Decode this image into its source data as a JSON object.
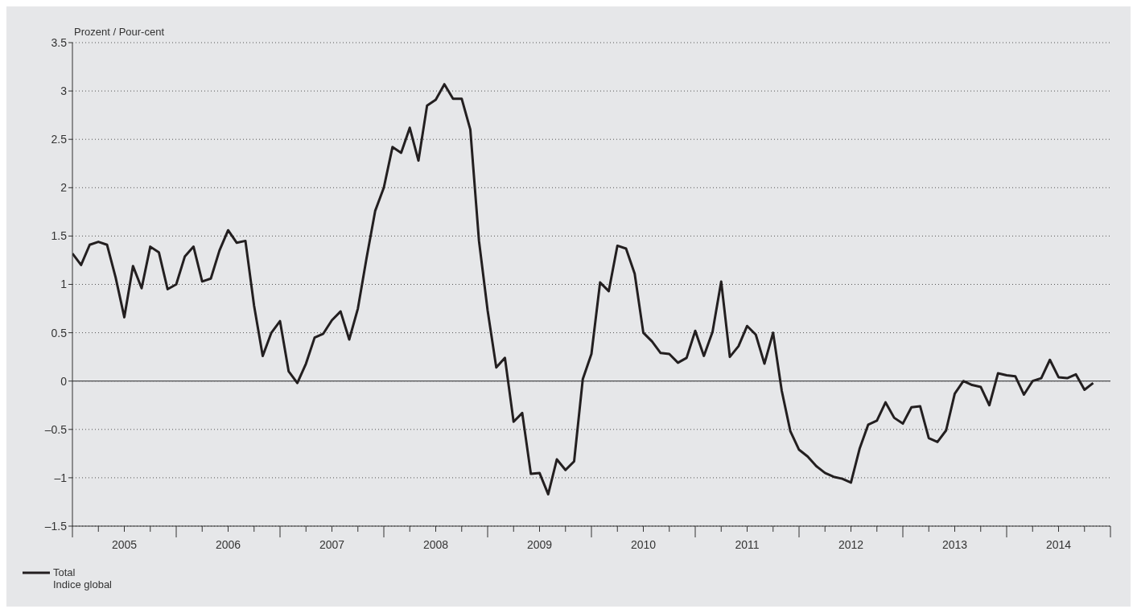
{
  "chart_data": {
    "type": "line",
    "ylabel": "Prozent / Pour-cent",
    "x": [
      "2005-01",
      "2005-02",
      "2005-03",
      "2005-04",
      "2005-05",
      "2005-06",
      "2005-07",
      "2005-08",
      "2005-09",
      "2005-10",
      "2005-11",
      "2005-12",
      "2006-01",
      "2006-02",
      "2006-03",
      "2006-04",
      "2006-05",
      "2006-06",
      "2006-07",
      "2006-08",
      "2006-09",
      "2006-10",
      "2006-11",
      "2006-12",
      "2007-01",
      "2007-02",
      "2007-03",
      "2007-04",
      "2007-05",
      "2007-06",
      "2007-07",
      "2007-08",
      "2007-09",
      "2007-10",
      "2007-11",
      "2007-12",
      "2008-01",
      "2008-02",
      "2008-03",
      "2008-04",
      "2008-05",
      "2008-06",
      "2008-07",
      "2008-08",
      "2008-09",
      "2008-10",
      "2008-11",
      "2008-12",
      "2009-01",
      "2009-02",
      "2009-03",
      "2009-04",
      "2009-05",
      "2009-06",
      "2009-07",
      "2009-08",
      "2009-09",
      "2009-10",
      "2009-11",
      "2009-12",
      "2010-01",
      "2010-02",
      "2010-03",
      "2010-04",
      "2010-05",
      "2010-06",
      "2010-07",
      "2010-08",
      "2010-09",
      "2010-10",
      "2010-11",
      "2010-12",
      "2011-01",
      "2011-02",
      "2011-03",
      "2011-04",
      "2011-05",
      "2011-06",
      "2011-07",
      "2011-08",
      "2011-09",
      "2011-10",
      "2011-11",
      "2011-12",
      "2012-01",
      "2012-02",
      "2012-03",
      "2012-04",
      "2012-05",
      "2012-06",
      "2012-07",
      "2012-08",
      "2012-09",
      "2012-10",
      "2012-11",
      "2012-12",
      "2013-01",
      "2013-02",
      "2013-03",
      "2013-04",
      "2013-05",
      "2013-06",
      "2013-07",
      "2013-08",
      "2013-09",
      "2013-10",
      "2013-11",
      "2013-12",
      "2014-01",
      "2014-02",
      "2014-03",
      "2014-04",
      "2014-05",
      "2014-06",
      "2014-07",
      "2014-08",
      "2014-09",
      "2014-10",
      "2014-11"
    ],
    "series": [
      {
        "name": "Total\nIndice global",
        "color": "#231f20",
        "values": [
          1.32,
          1.2,
          1.41,
          1.44,
          1.41,
          1.07,
          0.66,
          1.19,
          0.96,
          1.39,
          1.33,
          0.95,
          1.0,
          1.29,
          1.39,
          1.03,
          1.06,
          1.35,
          1.56,
          1.43,
          1.45,
          0.78,
          0.26,
          0.5,
          0.62,
          0.1,
          -0.02,
          0.18,
          0.45,
          0.49,
          0.63,
          0.72,
          0.43,
          0.75,
          1.27,
          1.76,
          2.0,
          2.42,
          2.36,
          2.62,
          2.28,
          2.85,
          2.91,
          3.07,
          2.92,
          2.92,
          2.6,
          1.45,
          0.73,
          0.14,
          0.24,
          -0.42,
          -0.33,
          -0.96,
          -0.95,
          -1.17,
          -0.81,
          -0.92,
          -0.83,
          0.02,
          0.28,
          1.02,
          0.93,
          1.4,
          1.37,
          1.11,
          0.5,
          0.41,
          0.29,
          0.28,
          0.19,
          0.24,
          0.52,
          0.26,
          0.51,
          1.03,
          0.25,
          0.36,
          0.57,
          0.48,
          0.18,
          0.5,
          -0.1,
          -0.52,
          -0.71,
          -0.78,
          -0.88,
          -0.95,
          -0.99,
          -1.01,
          -1.05,
          -0.7,
          -0.45,
          -0.41,
          -0.22,
          -0.38,
          -0.44,
          -0.27,
          -0.26,
          -0.59,
          -0.63,
          -0.51,
          -0.13,
          0.0,
          -0.04,
          -0.06,
          -0.25,
          0.08,
          0.06,
          0.05,
          -0.14,
          0.0,
          0.03,
          0.22,
          0.04,
          0.03,
          0.07,
          -0.09,
          -0.02
        ]
      }
    ],
    "xlim": [
      "2005-01",
      "2015-01"
    ],
    "xticks": [
      {
        "value": "2005-01",
        "label": null
      },
      {
        "value": "2005-04",
        "label": null
      },
      {
        "value": "2005-07",
        "label": "2005"
      },
      {
        "value": "2005-10",
        "label": null
      },
      {
        "value": "2006-01",
        "label": null
      },
      {
        "value": "2006-04",
        "label": null
      },
      {
        "value": "2006-07",
        "label": "2006"
      },
      {
        "value": "2006-10",
        "label": null
      },
      {
        "value": "2007-01",
        "label": null
      },
      {
        "value": "2007-04",
        "label": null
      },
      {
        "value": "2007-07",
        "label": "2007"
      },
      {
        "value": "2007-10",
        "label": null
      },
      {
        "value": "2008-01",
        "label": null
      },
      {
        "value": "2008-04",
        "label": null
      },
      {
        "value": "2008-07",
        "label": "2008"
      },
      {
        "value": "2008-10",
        "label": null
      },
      {
        "value": "2009-01",
        "label": null
      },
      {
        "value": "2009-04",
        "label": null
      },
      {
        "value": "2009-07",
        "label": "2009"
      },
      {
        "value": "2009-10",
        "label": null
      },
      {
        "value": "2010-01",
        "label": null
      },
      {
        "value": "2010-04",
        "label": null
      },
      {
        "value": "2010-07",
        "label": "2010"
      },
      {
        "value": "2010-10",
        "label": null
      },
      {
        "value": "2011-01",
        "label": null
      },
      {
        "value": "2011-04",
        "label": null
      },
      {
        "value": "2011-07",
        "label": "2011"
      },
      {
        "value": "2011-10",
        "label": null
      },
      {
        "value": "2012-01",
        "label": null
      },
      {
        "value": "2012-04",
        "label": null
      },
      {
        "value": "2012-07",
        "label": "2012"
      },
      {
        "value": "2012-10",
        "label": null
      },
      {
        "value": "2013-01",
        "label": null
      },
      {
        "value": "2013-04",
        "label": null
      },
      {
        "value": "2013-07",
        "label": "2013"
      },
      {
        "value": "2013-10",
        "label": null
      },
      {
        "value": "2014-01",
        "label": null
      },
      {
        "value": "2014-04",
        "label": null
      },
      {
        "value": "2014-07",
        "label": "2014"
      },
      {
        "value": "2014-10",
        "label": null
      },
      {
        "value": "2015-01",
        "label": null
      }
    ],
    "ylim": [
      -1.5,
      3.5
    ],
    "yticks": [
      {
        "value": -1.5,
        "label": "–1.5"
      },
      {
        "value": -1,
        "label": "–1"
      },
      {
        "value": -0.5,
        "label": "–0.5"
      },
      0,
      0.5,
      1,
      1.5,
      2,
      2.5,
      3,
      3.5
    ],
    "ref_lines": [
      {
        "axis": "y",
        "value": 0,
        "color": "#4d4d4f"
      }
    ],
    "grid": "y",
    "legend": "bottom left",
    "marker": "none",
    "line_style": "solid"
  }
}
